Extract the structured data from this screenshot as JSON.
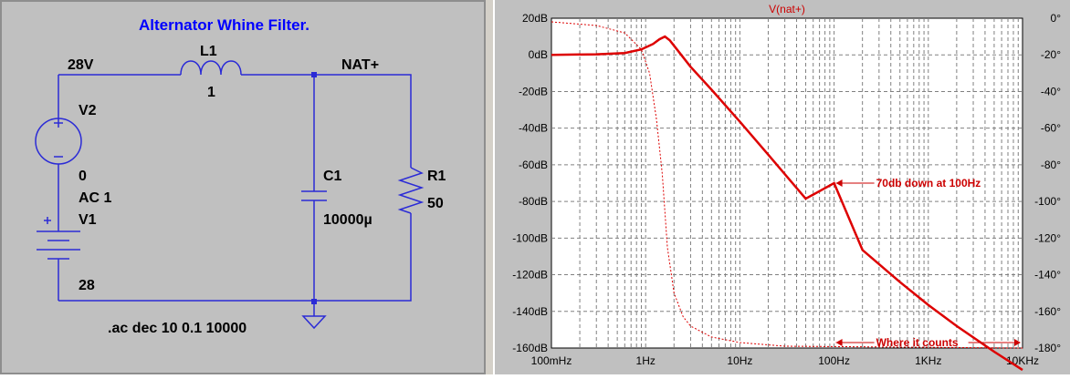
{
  "schematic": {
    "title": "Alternator Whine Filter.",
    "labels": {
      "node_28v": "28V",
      "l1_name": "L1",
      "l1_value": "1",
      "node_nat": "NAT+",
      "v2_name": "V2",
      "v2_dc": "0",
      "v2_ac": "AC 1",
      "v1_name": "V1",
      "v1_value": "28",
      "c1_name": "C1",
      "c1_value": "10000µ",
      "r1_name": "R1",
      "r1_value": "50",
      "directive": ".ac dec 10 0.1 10000"
    },
    "colors": {
      "wire": "#2b2bd6",
      "title": "#0000ff",
      "background": "#c0c0c0"
    }
  },
  "chart_data": {
    "type": "line",
    "title": "V(nat+)",
    "x_scale": "log",
    "xlim": [
      0.1,
      10000
    ],
    "x_ticks": [
      {
        "value": 0.1,
        "label": "100mHz"
      },
      {
        "value": 1,
        "label": "1Hz"
      },
      {
        "value": 10,
        "label": "10Hz"
      },
      {
        "value": 100,
        "label": "100Hz"
      },
      {
        "value": 1000,
        "label": "1KHz"
      },
      {
        "value": 10000,
        "label": "10KHz"
      }
    ],
    "y_left_lim": [
      -160,
      20
    ],
    "y_left_ticks": [
      "20dB",
      "0dB",
      "-20dB",
      "-40dB",
      "-60dB",
      "-80dB",
      "-100dB",
      "-120dB",
      "-140dB",
      "-160dB"
    ],
    "y_right_lim": [
      -180,
      0
    ],
    "y_right_ticks": [
      "0°",
      "-20°",
      "-40°",
      "-60°",
      "-80°",
      "-100°",
      "-120°",
      "-140°",
      "-160°",
      "-180°"
    ],
    "grid": true,
    "series": [
      {
        "role": "magnitude",
        "axis": "left",
        "style": "solid",
        "color": "#dd0000",
        "points": [
          [
            0.1,
            0
          ],
          [
            0.3,
            0.3
          ],
          [
            0.6,
            1
          ],
          [
            0.9,
            3
          ],
          [
            1.2,
            6
          ],
          [
            1.4,
            8.5
          ],
          [
            1.6,
            10
          ],
          [
            1.8,
            8
          ],
          [
            2,
            5
          ],
          [
            3,
            -6.5
          ],
          [
            5,
            -19
          ],
          [
            10,
            -36.5
          ],
          [
            20,
            -54.5
          ],
          [
            50,
            -78.5
          ],
          [
            100,
            -70
          ],
          [
            200,
            -106.5
          ],
          [
            500,
            -124
          ],
          [
            1000,
            -136.5
          ],
          [
            2000,
            -148
          ],
          [
            5000,
            -162
          ],
          [
            10000,
            -172
          ]
        ]
      },
      {
        "role": "phase",
        "axis": "right",
        "style": "dotted",
        "color": "#dd0000",
        "points": [
          [
            0.1,
            -2
          ],
          [
            0.3,
            -4
          ],
          [
            0.6,
            -8
          ],
          [
            0.9,
            -17
          ],
          [
            1.1,
            -30
          ],
          [
            1.3,
            -55
          ],
          [
            1.5,
            -85
          ],
          [
            1.7,
            -125
          ],
          [
            2,
            -150
          ],
          [
            2.5,
            -163
          ],
          [
            3,
            -168
          ],
          [
            5,
            -174
          ],
          [
            10,
            -177
          ],
          [
            30,
            -179
          ],
          [
            10000,
            -180
          ]
        ]
      }
    ],
    "annotations": [
      {
        "text": "70db down at 100Hz",
        "x": 100,
        "y": -70,
        "axis": "left"
      },
      {
        "text": "Where it counts",
        "x": 100,
        "y": -177,
        "axis": "right",
        "arrow_to_x": 10000
      }
    ]
  }
}
